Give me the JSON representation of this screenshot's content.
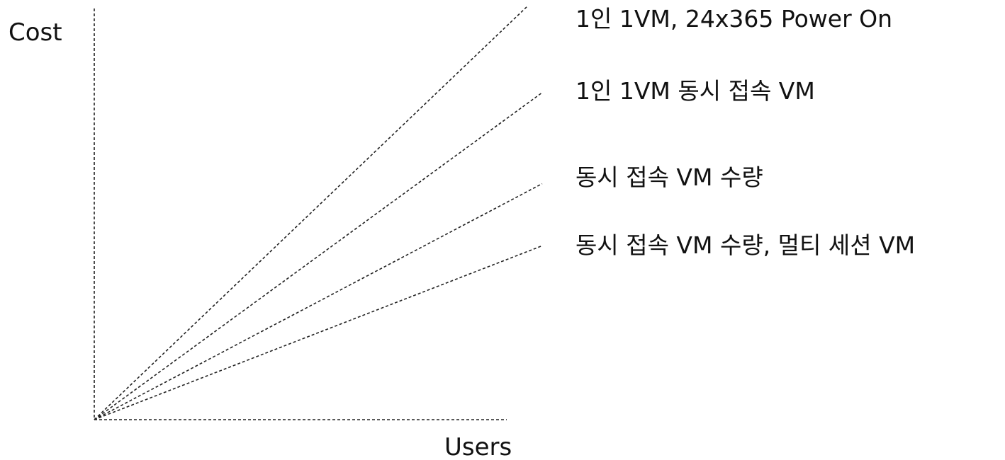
{
  "chart_data": {
    "type": "line",
    "title": "",
    "xlabel": "Users",
    "ylabel": "Cost",
    "grid": false,
    "legend": "inline labels at line ends, right side",
    "x": [
      0,
      1
    ],
    "xlim": [
      0,
      1
    ],
    "ylim": [
      0,
      1
    ],
    "series": [
      {
        "name": "1인 1VM, 24x365 Power On",
        "values": [
          0,
          1.0
        ],
        "color": "#222222"
      },
      {
        "name": "1인 1VM 동시 접속 VM",
        "values": [
          0,
          0.79
        ],
        "color": "#222222"
      },
      {
        "name": "동시 접속 VM 수량",
        "values": [
          0,
          0.57
        ],
        "color": "#222222"
      },
      {
        "name": "동시 접속 VM 수량, 멀티 세션 VM",
        "values": [
          0,
          0.42
        ],
        "color": "#222222"
      }
    ]
  }
}
